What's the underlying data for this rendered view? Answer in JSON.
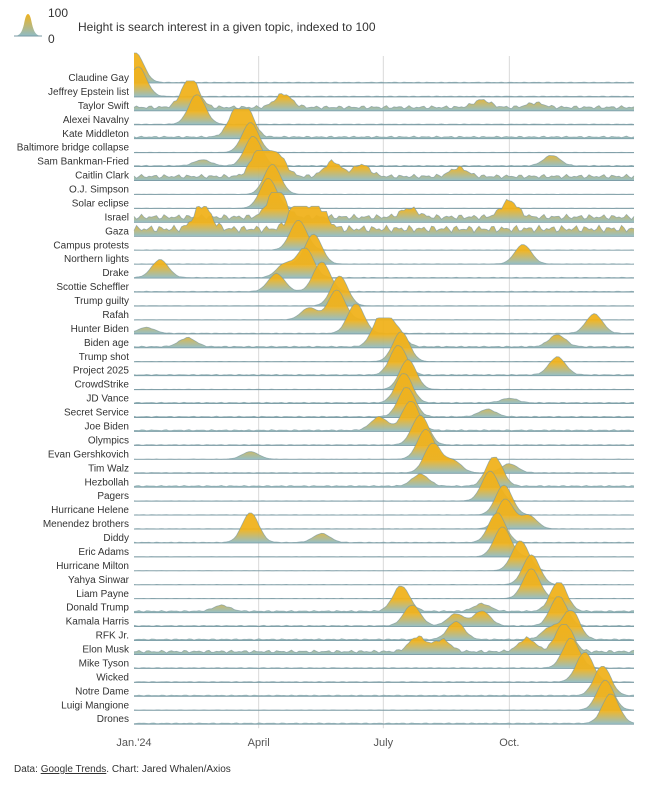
{
  "legend": {
    "max_label": "100",
    "min_label": "0",
    "description": "Height is search interest in a given topic, indexed to 100"
  },
  "colors": {
    "peak": "#f0b21c",
    "base": "#8fbcc6",
    "baseline": "#7a9aa3",
    "gridline": "#d9d9d9",
    "axis_text": "#555555"
  },
  "source": {
    "prefix": "Data: ",
    "link_text": "Google Trends",
    "suffix": ". Chart: Jared Whalen/Axios"
  },
  "chart_data": {
    "type": "ridgeline",
    "x_range": [
      "2024-01-01",
      "2024-12-31"
    ],
    "x_ticks": [
      {
        "date": "2024-01-01",
        "label": "Jan.'24"
      },
      {
        "date": "2024-04-01",
        "label": "April"
      },
      {
        "date": "2024-07-01",
        "label": "July"
      },
      {
        "date": "2024-10-01",
        "label": "Oct."
      }
    ],
    "y_range": [
      0,
      100
    ],
    "series": [
      {
        "name": "Claudine Gay",
        "peaks": [
          {
            "date": "2024-01-02",
            "value": 100
          }
        ],
        "baseline": 2
      },
      {
        "name": "Jeffrey Epstein list",
        "peaks": [
          {
            "date": "2024-01-04",
            "value": 100
          }
        ],
        "baseline": 2
      },
      {
        "name": "Taylor Swift",
        "peaks": [
          {
            "date": "2024-02-11",
            "value": 100
          },
          {
            "date": "2024-04-19",
            "value": 45
          },
          {
            "date": "2024-09-11",
            "value": 25
          },
          {
            "date": "2024-10-20",
            "value": 15
          }
        ],
        "baseline": 12
      },
      {
        "name": "Alexei Navalny",
        "peaks": [
          {
            "date": "2024-02-16",
            "value": 100
          }
        ],
        "baseline": 2
      },
      {
        "name": "Kate Middleton",
        "peaks": [
          {
            "date": "2024-03-15",
            "value": 60
          },
          {
            "date": "2024-03-22",
            "value": 100
          }
        ],
        "baseline": 6
      },
      {
        "name": "Baltimore bridge collapse",
        "peaks": [
          {
            "date": "2024-03-26",
            "value": 100
          }
        ],
        "baseline": 1
      },
      {
        "name": "Sam Bankman-Fried",
        "peaks": [
          {
            "date": "2024-03-28",
            "value": 100
          },
          {
            "date": "2024-02-20",
            "value": 20
          },
          {
            "date": "2024-11-01",
            "value": 35
          }
        ],
        "baseline": 3
      },
      {
        "name": "Caitlin Clark",
        "peaks": [
          {
            "date": "2024-04-02",
            "value": 100
          },
          {
            "date": "2024-04-15",
            "value": 70
          },
          {
            "date": "2024-05-25",
            "value": 50
          },
          {
            "date": "2024-06-15",
            "value": 40
          },
          {
            "date": "2024-08-25",
            "value": 30
          }
        ],
        "baseline": 14
      },
      {
        "name": "O.J. Simpson",
        "peaks": [
          {
            "date": "2024-04-11",
            "value": 100
          }
        ],
        "baseline": 1
      },
      {
        "name": "Solar eclipse",
        "peaks": [
          {
            "date": "2024-04-08",
            "value": 100
          }
        ],
        "baseline": 1
      },
      {
        "name": "Israel",
        "peaks": [
          {
            "date": "2024-04-14",
            "value": 100
          },
          {
            "date": "2024-07-20",
            "value": 30
          },
          {
            "date": "2024-10-01",
            "value": 55
          }
        ],
        "baseline": 18
      },
      {
        "name": "Gaza",
        "peaks": [
          {
            "date": "2024-02-20",
            "value": 80
          },
          {
            "date": "2024-04-30",
            "value": 100
          },
          {
            "date": "2024-05-15",
            "value": 70
          }
        ],
        "baseline": 25
      },
      {
        "name": "Campus protests",
        "peaks": [
          {
            "date": "2024-04-30",
            "value": 100
          }
        ],
        "baseline": 1
      },
      {
        "name": "Northern lights",
        "peaks": [
          {
            "date": "2024-05-11",
            "value": 100
          },
          {
            "date": "2024-10-11",
            "value": 65
          }
        ],
        "baseline": 1
      },
      {
        "name": "Drake",
        "peaks": [
          {
            "date": "2024-05-05",
            "value": 100
          },
          {
            "date": "2024-01-20",
            "value": 60
          },
          {
            "date": "2024-04-20",
            "value": 45
          }
        ],
        "baseline": 2
      },
      {
        "name": "Scottie Scheffler",
        "peaks": [
          {
            "date": "2024-05-17",
            "value": 100
          },
          {
            "date": "2024-04-14",
            "value": 60
          }
        ],
        "baseline": 2
      },
      {
        "name": "Trump guilty",
        "peaks": [
          {
            "date": "2024-05-30",
            "value": 100
          }
        ],
        "baseline": 1
      },
      {
        "name": "Rafah",
        "peaks": [
          {
            "date": "2024-05-28",
            "value": 100
          },
          {
            "date": "2024-05-08",
            "value": 40
          }
        ],
        "baseline": 1
      },
      {
        "name": "Hunter Biden",
        "peaks": [
          {
            "date": "2024-06-11",
            "value": 100
          },
          {
            "date": "2024-12-02",
            "value": 65
          },
          {
            "date": "2024-01-10",
            "value": 20
          }
        ],
        "baseline": 2
      },
      {
        "name": "Biden age",
        "peaks": [
          {
            "date": "2024-06-29",
            "value": 100
          },
          {
            "date": "2024-07-10",
            "value": 60
          },
          {
            "date": "2024-11-05",
            "value": 40
          },
          {
            "date": "2024-02-09",
            "value": 30
          }
        ],
        "baseline": 4
      },
      {
        "name": "Trump shot",
        "peaks": [
          {
            "date": "2024-07-14",
            "value": 100
          }
        ],
        "baseline": 1
      },
      {
        "name": "Project 2025",
        "peaks": [
          {
            "date": "2024-07-12",
            "value": 100
          },
          {
            "date": "2024-11-05",
            "value": 60
          }
        ],
        "baseline": 3
      },
      {
        "name": "CrowdStrike",
        "peaks": [
          {
            "date": "2024-07-19",
            "value": 100
          }
        ],
        "baseline": 1
      },
      {
        "name": "JD Vance",
        "peaks": [
          {
            "date": "2024-07-16",
            "value": 100
          },
          {
            "date": "2024-10-01",
            "value": 15
          }
        ],
        "baseline": 3
      },
      {
        "name": "Secret Service",
        "peaks": [
          {
            "date": "2024-07-18",
            "value": 100
          },
          {
            "date": "2024-09-15",
            "value": 25
          }
        ],
        "baseline": 3
      },
      {
        "name": "Joe Biden",
        "peaks": [
          {
            "date": "2024-07-21",
            "value": 100
          },
          {
            "date": "2024-06-28",
            "value": 45
          }
        ],
        "baseline": 4
      },
      {
        "name": "Olympics",
        "peaks": [
          {
            "date": "2024-07-28",
            "value": 100
          }
        ],
        "baseline": 2
      },
      {
        "name": "Evan Gershkovich",
        "peaks": [
          {
            "date": "2024-08-01",
            "value": 100
          },
          {
            "date": "2024-03-26",
            "value": 25
          }
        ],
        "baseline": 1
      },
      {
        "name": "Tim Walz",
        "peaks": [
          {
            "date": "2024-08-06",
            "value": 100
          },
          {
            "date": "2024-08-21",
            "value": 40
          },
          {
            "date": "2024-10-01",
            "value": 30
          }
        ],
        "baseline": 2
      },
      {
        "name": "Hezbollah",
        "peaks": [
          {
            "date": "2024-09-20",
            "value": 100
          },
          {
            "date": "2024-07-28",
            "value": 40
          }
        ],
        "baseline": 4
      },
      {
        "name": "Pagers",
        "peaks": [
          {
            "date": "2024-09-17",
            "value": 100
          }
        ],
        "baseline": 1
      },
      {
        "name": "Hurricane Helene",
        "peaks": [
          {
            "date": "2024-09-27",
            "value": 100
          }
        ],
        "baseline": 1
      },
      {
        "name": "Menendez brothers",
        "peaks": [
          {
            "date": "2024-09-28",
            "value": 100
          },
          {
            "date": "2024-10-15",
            "value": 45
          }
        ],
        "baseline": 1
      },
      {
        "name": "Diddy",
        "peaks": [
          {
            "date": "2024-09-22",
            "value": 100
          },
          {
            "date": "2024-03-26",
            "value": 100
          },
          {
            "date": "2024-05-17",
            "value": 30
          }
        ],
        "baseline": 2
      },
      {
        "name": "Eric Adams",
        "peaks": [
          {
            "date": "2024-09-26",
            "value": 100
          }
        ],
        "baseline": 1
      },
      {
        "name": "Hurricane Milton",
        "peaks": [
          {
            "date": "2024-10-09",
            "value": 100
          }
        ],
        "baseline": 1
      },
      {
        "name": "Yahya Sinwar",
        "peaks": [
          {
            "date": "2024-10-17",
            "value": 100
          }
        ],
        "baseline": 1
      },
      {
        "name": "Liam Payne",
        "peaks": [
          {
            "date": "2024-10-17",
            "value": 100
          }
        ],
        "baseline": 1
      },
      {
        "name": "Donald Trump",
        "peaks": [
          {
            "date": "2024-11-06",
            "value": 100
          },
          {
            "date": "2024-07-14",
            "value": 85
          },
          {
            "date": "2024-09-11",
            "value": 25
          },
          {
            "date": "2024-03-05",
            "value": 20
          }
        ],
        "baseline": 5
      },
      {
        "name": "Kamala Harris",
        "peaks": [
          {
            "date": "2024-11-06",
            "value": 100
          },
          {
            "date": "2024-07-22",
            "value": 70
          },
          {
            "date": "2024-09-11",
            "value": 50
          },
          {
            "date": "2024-08-23",
            "value": 40
          }
        ],
        "baseline": 3
      },
      {
        "name": "RFK Jr.",
        "peaks": [
          {
            "date": "2024-11-15",
            "value": 100
          },
          {
            "date": "2024-08-23",
            "value": 60
          },
          {
            "date": "2024-10-31",
            "value": 40
          }
        ],
        "baseline": 4
      },
      {
        "name": "Elon Musk",
        "peaks": [
          {
            "date": "2024-11-10",
            "value": 100
          },
          {
            "date": "2024-07-26",
            "value": 50
          },
          {
            "date": "2024-08-13",
            "value": 40
          },
          {
            "date": "2024-10-14",
            "value": 45
          }
        ],
        "baseline": 10
      },
      {
        "name": "Mike Tyson",
        "peaks": [
          {
            "date": "2024-11-15",
            "value": 100
          }
        ],
        "baseline": 2
      },
      {
        "name": "Wicked",
        "peaks": [
          {
            "date": "2024-11-25",
            "value": 100
          }
        ],
        "baseline": 2
      },
      {
        "name": "Notre Dame",
        "peaks": [
          {
            "date": "2024-12-08",
            "value": 100
          }
        ],
        "baseline": 3
      },
      {
        "name": "Luigi Mangione",
        "peaks": [
          {
            "date": "2024-12-10",
            "value": 100
          }
        ],
        "baseline": 1
      },
      {
        "name": "Drones",
        "peaks": [
          {
            "date": "2024-12-14",
            "value": 100
          }
        ],
        "baseline": 3
      }
    ]
  }
}
